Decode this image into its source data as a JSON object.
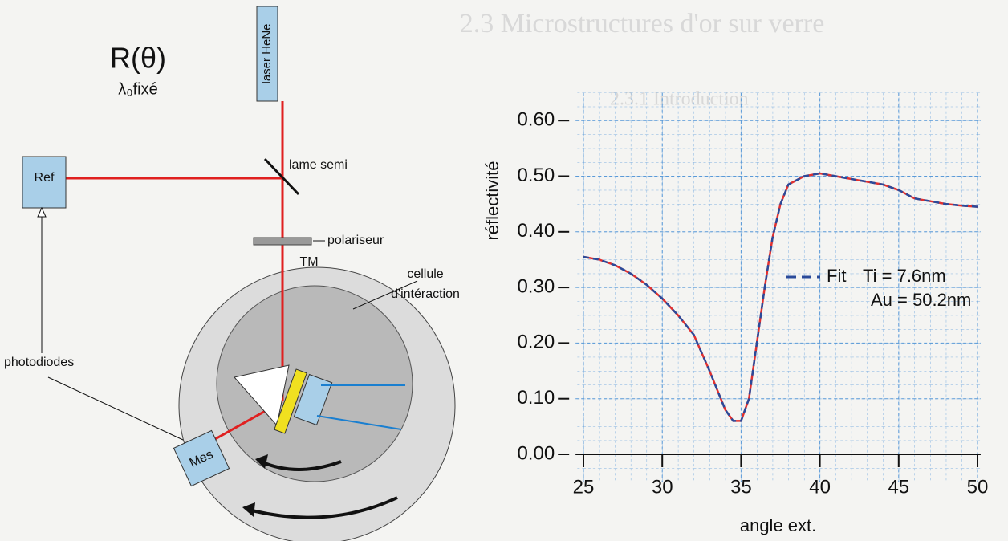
{
  "page": {
    "heading": "2.3 Microstructures d'or sur verre",
    "subheading": "2.3.1 Introduction"
  },
  "diagram": {
    "title": "R(θ)",
    "subtitle": "λ₀fixé",
    "laser": "laser HeNe",
    "ref": "Ref",
    "splitter": "lame semi",
    "polariser": "polariseur",
    "polariser_mode": "TM",
    "cell_line1": "cellule",
    "cell_line2": "d'intéraction",
    "photodiodes": "photodiodes",
    "mes": "Mes"
  },
  "chart_data": {
    "type": "line",
    "ylabel": "réflectivité",
    "xlabel": "angle ext.",
    "x": [
      25,
      26,
      27,
      28,
      29,
      30,
      31,
      32,
      33,
      34,
      34.5,
      35,
      35.5,
      36,
      36.5,
      37,
      37.5,
      38,
      39,
      40,
      41,
      42,
      43,
      44,
      45,
      46,
      47,
      48,
      49,
      50
    ],
    "series": [
      {
        "color": "#e03030",
        "values": [
          0.355,
          0.35,
          0.34,
          0.325,
          0.305,
          0.28,
          0.25,
          0.215,
          0.15,
          0.08,
          0.06,
          0.06,
          0.1,
          0.2,
          0.3,
          0.39,
          0.45,
          0.485,
          0.5,
          0.505,
          0.5,
          0.495,
          0.49,
          0.485,
          0.475,
          0.46,
          0.455,
          0.45,
          0.447,
          0.445
        ]
      },
      {
        "name": "Fit",
        "color": "#2a4a9a",
        "dashed": true,
        "values": [
          0.355,
          0.35,
          0.34,
          0.325,
          0.305,
          0.28,
          0.25,
          0.215,
          0.15,
          0.08,
          0.06,
          0.06,
          0.1,
          0.2,
          0.3,
          0.39,
          0.45,
          0.485,
          0.5,
          0.505,
          0.5,
          0.495,
          0.49,
          0.485,
          0.475,
          0.46,
          0.455,
          0.45,
          0.447,
          0.445
        ]
      }
    ],
    "annotations": [
      "Ti = 7.6nm",
      "Au = 50.2nm"
    ],
    "xlim": [
      24.5,
      50.2
    ],
    "ylim": [
      -0.05,
      0.65
    ],
    "xticks": [
      25,
      30,
      35,
      40,
      45,
      50
    ],
    "yticks": [
      {
        "value": 0,
        "label": "0.00"
      },
      {
        "value": 0.1,
        "label": "0.10"
      },
      {
        "value": 0.2,
        "label": "0.20"
      },
      {
        "value": 0.3,
        "label": "0.30"
      },
      {
        "value": 0.4,
        "label": "0.40"
      },
      {
        "value": 0.5,
        "label": "0.50"
      },
      {
        "value": 0.6,
        "label": "0.60"
      }
    ],
    "grid": true
  }
}
